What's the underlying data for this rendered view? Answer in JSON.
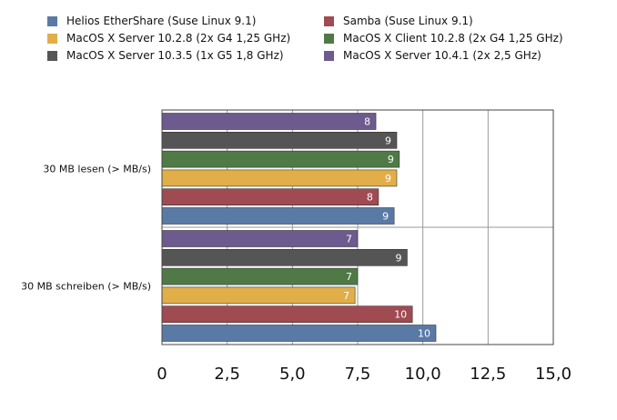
{
  "chart_data": {
    "type": "bar",
    "orientation": "horizontal",
    "title": "",
    "xlabel": "",
    "ylabel": "",
    "xlim": [
      0,
      15
    ],
    "ticks": [
      0,
      2.5,
      5,
      7.5,
      10,
      12.5,
      15
    ],
    "tick_labels": [
      "0",
      "2,5",
      "5,0",
      "7,5",
      "10,0",
      "12,5",
      "15,0"
    ],
    "grid": true,
    "legend_position": "top",
    "categories": [
      "30 MB lesen (> MB/s)",
      "30 MB schreiben (> MB/s)"
    ],
    "series": [
      {
        "name": "Helios EtherShare (Suse Linux 9.1)",
        "color": "#5a7aa6",
        "values": [
          8.9,
          10.5
        ],
        "labels": [
          "9",
          "10"
        ]
      },
      {
        "name": "Samba (Suse Linux 9.1)",
        "color": "#a04a52",
        "values": [
          8.3,
          9.6
        ],
        "labels": [
          "8",
          "10"
        ]
      },
      {
        "name": "MacOS X Server 10.2.8 (2x G4 1,25 GHz)",
        "color": "#e2ae4a",
        "values": [
          9.0,
          7.4
        ],
        "labels": [
          "9",
          "7"
        ]
      },
      {
        "name": "MacOS X Client 10.2.8 (2x G4 1,25 GHz)",
        "color": "#4f7a46",
        "values": [
          9.1,
          7.5
        ],
        "labels": [
          "9",
          "7"
        ]
      },
      {
        "name": "MacOS X Server 10.3.5 (1x G5 1,8 GHz)",
        "color": "#555555",
        "values": [
          9.0,
          9.4
        ],
        "labels": [
          "9",
          "9"
        ]
      },
      {
        "name": "MacOS X Server 10.4.1 (2x 2,5 GHz)",
        "color": "#6d5a8e",
        "values": [
          8.2,
          7.5
        ],
        "labels": [
          "8",
          "7"
        ]
      }
    ]
  }
}
